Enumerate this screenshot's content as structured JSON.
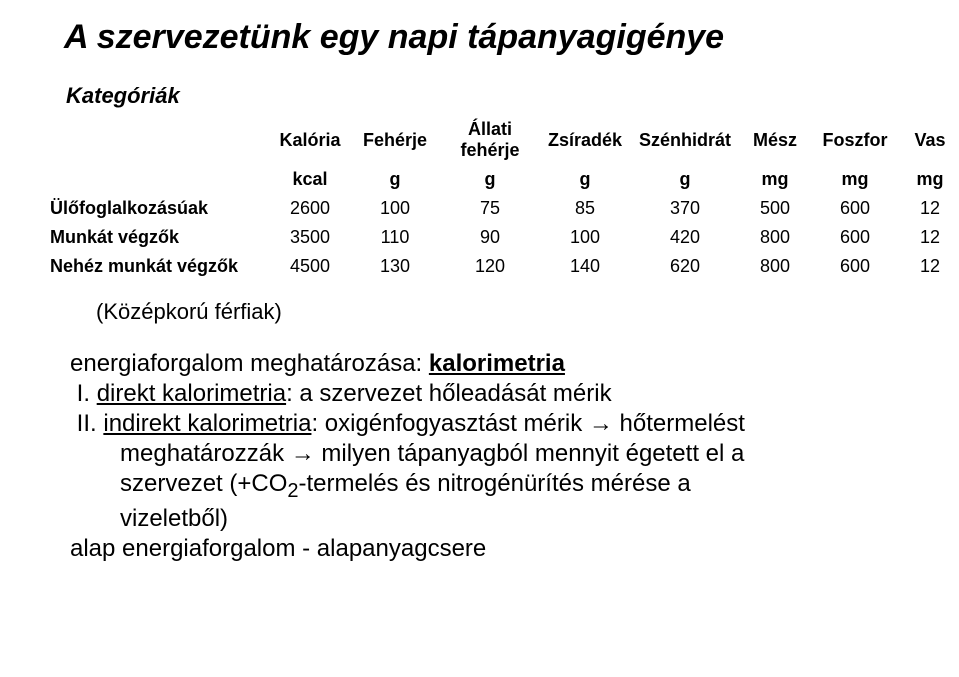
{
  "title": "A szervezetünk egy napi tápanyagigénye",
  "categories_label": "Kategóriák",
  "columns": [
    "Kalória",
    "Fehérje",
    "Állati fehérje",
    "Zsíradék",
    "Szénhidrát",
    "Mész",
    "Foszfor",
    "Vas"
  ],
  "units": [
    "kcal",
    "g",
    "g",
    "g",
    "g",
    "mg",
    "mg",
    "mg"
  ],
  "rows": [
    {
      "label": "Ülőfoglalkozásúak",
      "values": [
        "2600",
        "100",
        "75",
        "85",
        "370",
        "500",
        "600",
        "12"
      ]
    },
    {
      "label": "Munkát végzők",
      "values": [
        "3500",
        "110",
        "90",
        "100",
        "420",
        "800",
        "600",
        "12"
      ]
    },
    {
      "label": "Nehéz munkát végzők",
      "values": [
        "4500",
        "130",
        "120",
        "140",
        "620",
        "800",
        "600",
        "12"
      ]
    }
  ],
  "note": "(Középkorú férfiak)",
  "body": {
    "line1_a": "energiaforgalom meghatározása: ",
    "line1_b": "kalorimetria",
    "item1_num": "I.",
    "item1_u": "direkt kalorimetria",
    "item1_rest": ": a szervezet hőleadását mérik",
    "item2_num": "II.",
    "item2_u": "indirekt kalorimetria",
    "item2_rest1": ": oxigénfogyasztást mérik → hőtermelést",
    "item2_rest2": "meghatározzák → milyen tápanyagból mennyit égetett el a",
    "item2_rest3a": "szervezet (+CO",
    "item2_sub": "2",
    "item2_rest3b": "-termelés és nitrogénürítés mérése a",
    "item2_rest4": "vizeletből)",
    "line_last": "alap energiaforgalom - alapanyagcsere"
  },
  "col_widths": [
    "230px",
    "80px",
    "90px",
    "100px",
    "90px",
    "110px",
    "70px",
    "90px",
    "60px"
  ]
}
